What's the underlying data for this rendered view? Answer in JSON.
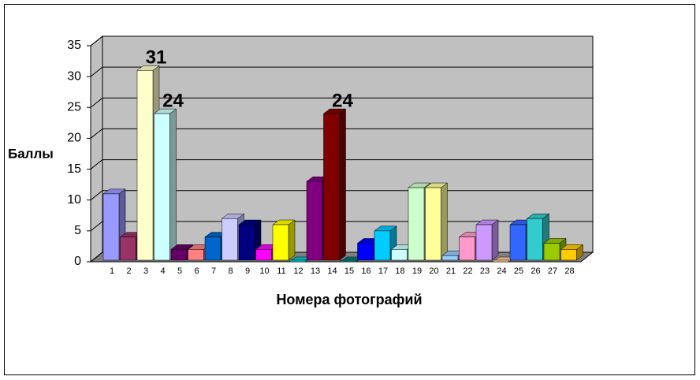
{
  "chart_data": {
    "type": "bar3d",
    "ylabel": "Баллы",
    "xlabel": "Номера фотографий",
    "categories": [
      "1",
      "2",
      "3",
      "4",
      "5",
      "6",
      "7",
      "8",
      "9",
      "10",
      "11",
      "12",
      "13",
      "14",
      "15",
      "16",
      "17",
      "18",
      "19",
      "20",
      "21",
      "22",
      "23",
      "24",
      "25",
      "26",
      "27",
      "28"
    ],
    "values": [
      11,
      4,
      31,
      24,
      2,
      2,
      4,
      7,
      6,
      2,
      6,
      0,
      13,
      24,
      0,
      3,
      5,
      2,
      12,
      12,
      1,
      4,
      6,
      0,
      6,
      7,
      3,
      2
    ],
    "value_labels": [
      null,
      null,
      "31",
      "24",
      null,
      null,
      null,
      null,
      null,
      null,
      null,
      null,
      null,
      "24",
      null,
      null,
      null,
      null,
      null,
      null,
      null,
      null,
      null,
      null,
      null,
      null,
      null,
      null
    ],
    "colors": [
      "#9999ff",
      "#993366",
      "#ffffcc",
      "#ccffff",
      "#660066",
      "#ff8080",
      "#0066cc",
      "#ccccff",
      "#000080",
      "#ff00ff",
      "#ffff00",
      "#00cccc",
      "#800080",
      "#800000",
      "#008080",
      "#0000ff",
      "#00ccff",
      "#ccffff",
      "#ccffcc",
      "#ffff99",
      "#99ccff",
      "#ff99cc",
      "#cc99ff",
      "#ffcc99",
      "#3366ff",
      "#33cccc",
      "#99cc00",
      "#ffcc00"
    ],
    "ylim": [
      0,
      35
    ],
    "yticks": [
      0,
      5,
      10,
      15,
      20,
      25,
      30,
      35
    ],
    "grid": true,
    "wall_color": "#c0c0c0"
  }
}
